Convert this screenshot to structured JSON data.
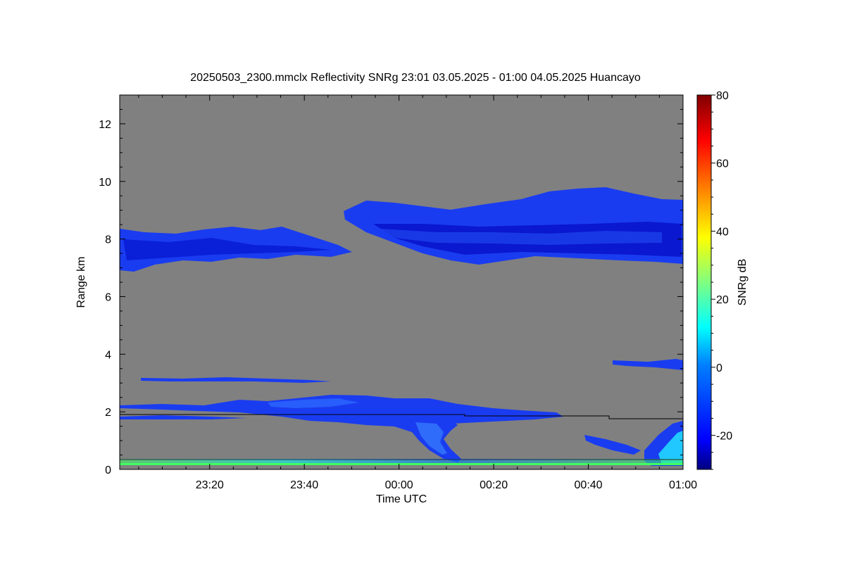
{
  "chart_data": {
    "type": "heatmap",
    "title": "20250503_2300.mmclx Reflectivity SNRg   23:01 03.05.2025 - 01:00 04.05.2025 Huancayo",
    "xlabel": "Time UTC",
    "ylabel": "Range km",
    "x_range_minutes": [
      1,
      120
    ],
    "x_origin_time": "23:00",
    "x_ticks": [
      {
        "min": 20,
        "label": "23:20"
      },
      {
        "min": 40,
        "label": "23:40"
      },
      {
        "min": 60,
        "label": "00:00"
      },
      {
        "min": 80,
        "label": "00:20"
      },
      {
        "min": 100,
        "label": "00:40"
      },
      {
        "min": 120,
        "label": "01:00"
      }
    ],
    "ylim": [
      0,
      13
    ],
    "y_ticks": [
      0,
      2,
      4,
      6,
      8,
      10,
      12
    ],
    "colorbar": {
      "label": "SNRg dB",
      "range": [
        -30,
        80
      ],
      "ticks": [
        -20,
        0,
        20,
        40,
        60,
        80
      ],
      "colors": [
        "#000080",
        "#0000ff",
        "#0080ff",
        "#00ffff",
        "#80ff80",
        "#ffff00",
        "#ff8000",
        "#ff0000",
        "#800000"
      ]
    },
    "background_color": "#808080",
    "echo_color": "#1a3cf0",
    "cloud_layers": [
      {
        "name": "upper-left layer",
        "x_start": 1,
        "x_end": 49,
        "bottom_km": 7.0,
        "top_km": 8.3,
        "snr_db": -18
      },
      {
        "name": "upper-right layer",
        "x_start": 48,
        "x_end": 120,
        "bottom_km": 7.2,
        "top_km": 9.6,
        "snr_db": -15
      },
      {
        "name": "low layer",
        "x_start": 1,
        "x_end": 92,
        "bottom_km": 1.6,
        "top_km": 2.6,
        "snr_db": -15
      },
      {
        "name": "mid-right layer",
        "x_start": 104,
        "x_end": 120,
        "bottom_km": 3.4,
        "top_km": 3.9,
        "snr_db": -18
      },
      {
        "name": "fall streak",
        "x_start": 55,
        "x_end": 73,
        "bottom_km": 0.2,
        "top_km": 2.2,
        "snr_db": -10
      },
      {
        "name": "near-surface echo",
        "x_start": 100,
        "x_end": 120,
        "bottom_km": 0.1,
        "top_km": 1.6,
        "snr_db": 5
      }
    ],
    "boundary_line_km": [
      {
        "x_start": 1,
        "x_end": 74,
        "value": 1.95
      },
      {
        "x_start": 74,
        "x_end": 105,
        "value": 1.85
      },
      {
        "x_start": 105,
        "x_end": 120,
        "value": 1.72
      }
    ]
  }
}
